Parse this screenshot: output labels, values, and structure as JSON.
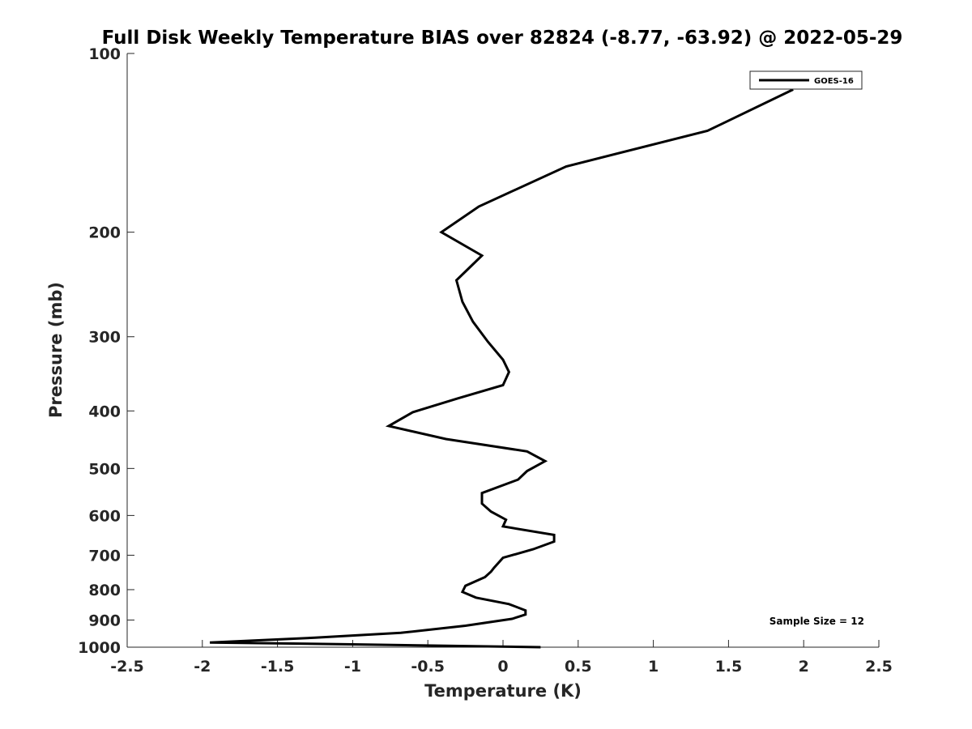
{
  "chart_data": {
    "type": "line",
    "title": "Full Disk Weekly Temperature BIAS over 82824 (-8.77, -63.92) @ 2022-05-29",
    "xlabel": "Temperature (K)",
    "ylabel": "Pressure (mb)",
    "xlim": [
      -2.5,
      2.5
    ],
    "ylim": [
      100,
      1000
    ],
    "y_scale": "log",
    "y_reversed": true,
    "x_ticks": [
      "-2.5",
      "-2",
      "-1.5",
      "-1",
      "-0.5",
      "0",
      "0.5",
      "1",
      "1.5",
      "2",
      "2.5"
    ],
    "y_ticks": [
      "100",
      "200",
      "300",
      "400",
      "500",
      "600",
      "700",
      "800",
      "900",
      "1000"
    ],
    "grid": false,
    "legend": {
      "position": "top-right",
      "entries": [
        "GOES-16"
      ]
    },
    "series": [
      {
        "name": "GOES-16",
        "color": "#000000",
        "points": [
          {
            "x": 1.93,
            "p": 115
          },
          {
            "x": 1.36,
            "p": 135
          },
          {
            "x": 0.42,
            "p": 155
          },
          {
            "x": -0.16,
            "p": 181
          },
          {
            "x": -0.41,
            "p": 200
          },
          {
            "x": -0.14,
            "p": 219
          },
          {
            "x": -0.31,
            "p": 241
          },
          {
            "x": -0.27,
            "p": 262
          },
          {
            "x": -0.2,
            "p": 283
          },
          {
            "x": -0.1,
            "p": 306
          },
          {
            "x": 0.0,
            "p": 328
          },
          {
            "x": 0.04,
            "p": 344
          },
          {
            "x": 0.0,
            "p": 362
          },
          {
            "x": -0.3,
            "p": 381
          },
          {
            "x": -0.6,
            "p": 402
          },
          {
            "x": -0.76,
            "p": 424
          },
          {
            "x": -0.38,
            "p": 446
          },
          {
            "x": 0.16,
            "p": 468
          },
          {
            "x": 0.28,
            "p": 486
          },
          {
            "x": 0.16,
            "p": 505
          },
          {
            "x": 0.1,
            "p": 522
          },
          {
            "x": -0.14,
            "p": 550
          },
          {
            "x": -0.14,
            "p": 573
          },
          {
            "x": -0.08,
            "p": 591
          },
          {
            "x": 0.02,
            "p": 610
          },
          {
            "x": 0.0,
            "p": 626
          },
          {
            "x": 0.34,
            "p": 647
          },
          {
            "x": 0.34,
            "p": 664
          },
          {
            "x": 0.2,
            "p": 684
          },
          {
            "x": 0.0,
            "p": 707
          },
          {
            "x": -0.06,
            "p": 735
          },
          {
            "x": -0.08,
            "p": 746
          },
          {
            "x": -0.12,
            "p": 762
          },
          {
            "x": -0.25,
            "p": 788
          },
          {
            "x": -0.27,
            "p": 807
          },
          {
            "x": -0.18,
            "p": 825
          },
          {
            "x": 0.04,
            "p": 846
          },
          {
            "x": 0.15,
            "p": 867
          },
          {
            "x": 0.15,
            "p": 881
          },
          {
            "x": 0.06,
            "p": 896
          },
          {
            "x": -0.25,
            "p": 920
          },
          {
            "x": -0.68,
            "p": 946
          },
          {
            "x": -1.25,
            "p": 964
          },
          {
            "x": -1.95,
            "p": 982
          },
          {
            "x": -1.0,
            "p": 989
          },
          {
            "x": 0.25,
            "p": 1000
          }
        ]
      }
    ],
    "annotations": [
      "Sample Size = 12"
    ]
  }
}
